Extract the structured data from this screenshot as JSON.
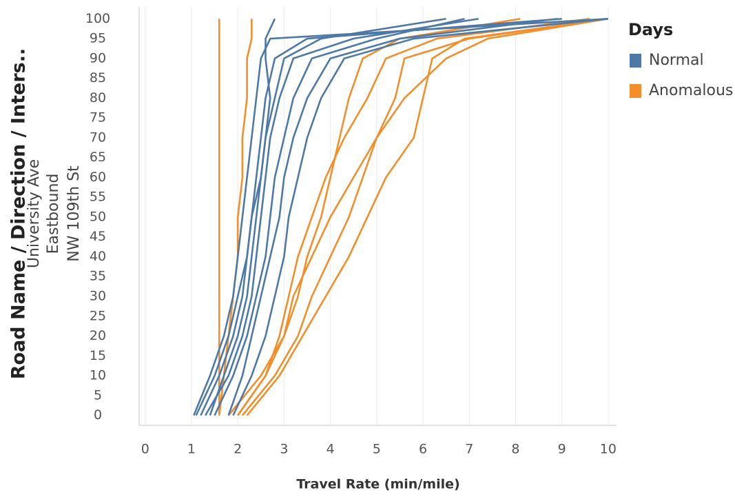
{
  "chart_data": {
    "type": "line",
    "title_rows": [
      "Road Name / Direction / Inters..",
      "University Ave",
      "Eastbound",
      "NW 109th St"
    ],
    "x_label": "Travel Rate (min/mile)",
    "legend_title": "Days",
    "legend": "right",
    "grid": true,
    "xlim": [
      -0.13,
      10.18
    ],
    "ylim": [
      -2.5,
      103
    ],
    "xticks": [
      0,
      1,
      2,
      3,
      4,
      5,
      6,
      7,
      8,
      9,
      10
    ],
    "yticks": [
      0,
      5,
      10,
      15,
      20,
      25,
      30,
      35,
      40,
      45,
      50,
      55,
      60,
      65,
      70,
      75,
      80,
      85,
      90,
      95,
      100
    ],
    "series": [
      {
        "name": "Normal",
        "color": "#4e79a7",
        "lines": [
          {
            "x": [
              1.05,
              1.4,
              1.7,
              1.9,
              2.0,
              2.1,
              2.2,
              2.3,
              2.4,
              2.5,
              2.7,
              10
            ],
            "values": [
              0,
              10,
              20,
              30,
              40,
              50,
              60,
              70,
              80,
              90,
              95,
              100
            ]
          },
          {
            "x": [
              1.2,
              1.6,
              1.9,
              2.1,
              2.2,
              2.3,
              2.4,
              2.5,
              2.6,
              2.8,
              3.5,
              9.0
            ],
            "values": [
              0,
              10,
              20,
              30,
              40,
              50,
              60,
              70,
              80,
              90,
              95,
              100
            ]
          },
          {
            "x": [
              1.3,
              1.8,
              2.1,
              2.3,
              2.4,
              2.5,
              2.6,
              2.7,
              2.9,
              3.2,
              4.5,
              7.2
            ],
            "values": [
              0,
              10,
              20,
              30,
              40,
              50,
              60,
              70,
              80,
              90,
              95,
              100
            ]
          },
          {
            "x": [
              1.5,
              1.9,
              2.2,
              2.4,
              2.6,
              2.7,
              2.8,
              3.0,
              3.2,
              3.6,
              5.0,
              6.9
            ],
            "values": [
              0,
              10,
              20,
              30,
              40,
              50,
              60,
              70,
              80,
              90,
              95,
              100
            ]
          },
          {
            "x": [
              1.8,
              2.1,
              2.3,
              2.5,
              2.7,
              2.9,
              3.0,
              3.2,
              3.5,
              4.0,
              5.5,
              8.9
            ],
            "values": [
              0,
              10,
              20,
              30,
              40,
              50,
              60,
              70,
              80,
              90,
              95,
              100
            ]
          },
          {
            "x": [
              1.1,
              1.5,
              1.8,
              2.0,
              2.2,
              2.3,
              2.5,
              2.6,
              2.8,
              3.0,
              3.8,
              6.5
            ],
            "values": [
              0,
              10,
              20,
              30,
              40,
              50,
              60,
              70,
              80,
              90,
              95,
              100
            ]
          },
          {
            "x": [
              1.9,
              2.3,
              2.6,
              2.8,
              3.0,
              3.1,
              3.3,
              3.5,
              3.8,
              4.3,
              5.8,
              10
            ],
            "values": [
              0,
              10,
              20,
              30,
              40,
              50,
              60,
              70,
              80,
              90,
              95,
              100
            ]
          },
          {
            "x": [
              1.4,
              1.7,
              2.0,
              2.2,
              2.3,
              2.4,
              2.5,
              2.6,
              2.7,
              2.6,
              2.6,
              2.8
            ],
            "values": [
              0,
              10,
              20,
              30,
              40,
              50,
              60,
              70,
              80,
              90,
              95,
              100
            ]
          }
        ]
      },
      {
        "name": "Anomalous",
        "color": "#f28e2b",
        "lines": [
          {
            "x": [
              1.6,
              1.6,
              1.6,
              1.6,
              1.6,
              1.6,
              1.6,
              1.6,
              1.6,
              1.6,
              1.6,
              1.6
            ],
            "values": [
              0,
              10,
              20,
              30,
              40,
              50,
              60,
              70,
              80,
              90,
              95,
              100
            ]
          },
          {
            "x": [
              1.6,
              1.7,
              1.8,
              1.9,
              2.0,
              2.0,
              2.1,
              2.1,
              2.2,
              2.2,
              2.3,
              2.3
            ],
            "values": [
              0,
              10,
              20,
              30,
              40,
              50,
              60,
              70,
              80,
              90,
              95,
              100
            ]
          },
          {
            "x": [
              2.0,
              2.6,
              3.0,
              3.3,
              3.5,
              3.8,
              4.0,
              4.2,
              4.4,
              4.7,
              5.5,
              8.1
            ],
            "values": [
              0,
              10,
              20,
              30,
              40,
              50,
              60,
              70,
              80,
              90,
              95,
              100
            ]
          },
          {
            "x": [
              2.1,
              2.8,
              3.3,
              3.6,
              4.0,
              4.4,
              4.7,
              5.0,
              5.4,
              5.6,
              7.0,
              10
            ],
            "values": [
              0,
              10,
              20,
              30,
              40,
              50,
              60,
              70,
              80,
              90,
              95,
              100
            ]
          },
          {
            "x": [
              1.8,
              2.5,
              3.0,
              3.2,
              3.6,
              4.0,
              4.5,
              5.0,
              5.6,
              6.5,
              7.4,
              10
            ],
            "values": [
              0,
              10,
              20,
              30,
              40,
              50,
              60,
              70,
              80,
              90,
              95,
              100
            ]
          },
          {
            "x": [
              2.0,
              2.6,
              2.9,
              3.1,
              3.3,
              3.6,
              3.9,
              4.3,
              4.8,
              5.2,
              6.3,
              9.6
            ],
            "values": [
              0,
              10,
              20,
              30,
              40,
              50,
              60,
              70,
              80,
              90,
              95,
              100
            ]
          },
          {
            "x": [
              2.2,
              2.9,
              3.4,
              3.9,
              4.4,
              4.8,
              5.2,
              5.8,
              6.0,
              6.2,
              6.9,
              10
            ],
            "values": [
              0,
              10,
              20,
              30,
              40,
              50,
              60,
              70,
              80,
              90,
              95,
              100
            ]
          }
        ]
      }
    ]
  }
}
